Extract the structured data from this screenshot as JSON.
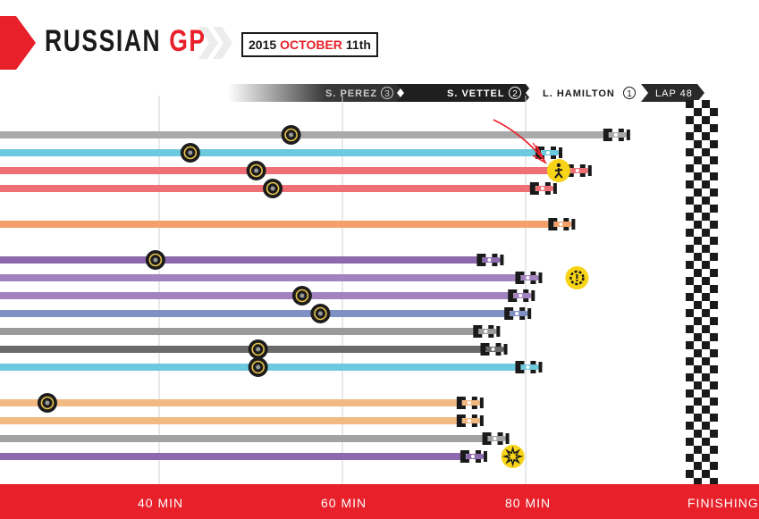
{
  "header": {
    "title_main": "RUSSIAN",
    "title_accent": "GP",
    "date_year": "2015",
    "date_month": "OCTOBER",
    "date_day": "11th",
    "accent_color": "#e8202a"
  },
  "positions": {
    "p3_name": "S. PEREZ",
    "p3_pos": "3",
    "p2_name": "S. VETTEL",
    "p2_pos": "2",
    "p1_name": "L. HAMILTON",
    "p1_pos": "1",
    "lap": "LAP 48"
  },
  "axis": {
    "tick_40": "40 MIN",
    "tick_60": "60 MIN",
    "tick_80": "80 MIN",
    "finish": "FINISHING"
  },
  "chart_data": {
    "type": "bar",
    "orientation": "horizontal",
    "x_unit": "minutes",
    "x_gridlines": [
      40,
      60,
      80
    ],
    "finish_label": "FINISHING",
    "series": [
      {
        "color": "#aaaaaa",
        "end_min": 91.4,
        "pit_stop_min": 54.4
      },
      {
        "color": "#6cc9de",
        "end_min": 84.0,
        "pit_stop_min": 43.4
      },
      {
        "color": "#ee7076",
        "end_min": 87.2,
        "pit_stop_min": 50.6,
        "incident": "pedestrian-icon",
        "incident_min": 83.6
      },
      {
        "color": "#ee7076",
        "end_min": 83.4,
        "pit_stop_min": 52.4
      },
      {
        "color": "#f3a06a",
        "end_min": 85.4
      },
      {
        "color": "#8d6aae",
        "end_min": 77.6,
        "pit_stop_min": 39.6
      },
      {
        "color": "#a282bf",
        "end_min": 81.8,
        "incident": "mechanical-failure-icon",
        "incident_min": 85.6
      },
      {
        "color": "#a282bf",
        "end_min": 81.0,
        "pit_stop_min": 55.6
      },
      {
        "color": "#7f90c5",
        "end_min": 80.6,
        "pit_stop_min": 57.6
      },
      {
        "color": "#9a9a9a",
        "end_min": 77.2
      },
      {
        "color": "#6a6a6a",
        "end_min": 78.0,
        "pit_stop_min": 50.8
      },
      {
        "color": "#6cc9de",
        "end_min": 81.8,
        "pit_stop_min": 50.8
      },
      {
        "color": "#f3b982",
        "end_min": 75.4,
        "pit_stop_min": 27.8
      },
      {
        "color": "#f3b982",
        "end_min": 75.4
      },
      {
        "color": "#a2a2a2",
        "end_min": 78.2
      },
      {
        "color": "#8d6aae",
        "end_min": 75.8,
        "incident": "crash-icon",
        "incident_min": 78.6
      }
    ],
    "annotations": [
      "red-arrow-pointing-at-pedestrian-incident"
    ]
  }
}
